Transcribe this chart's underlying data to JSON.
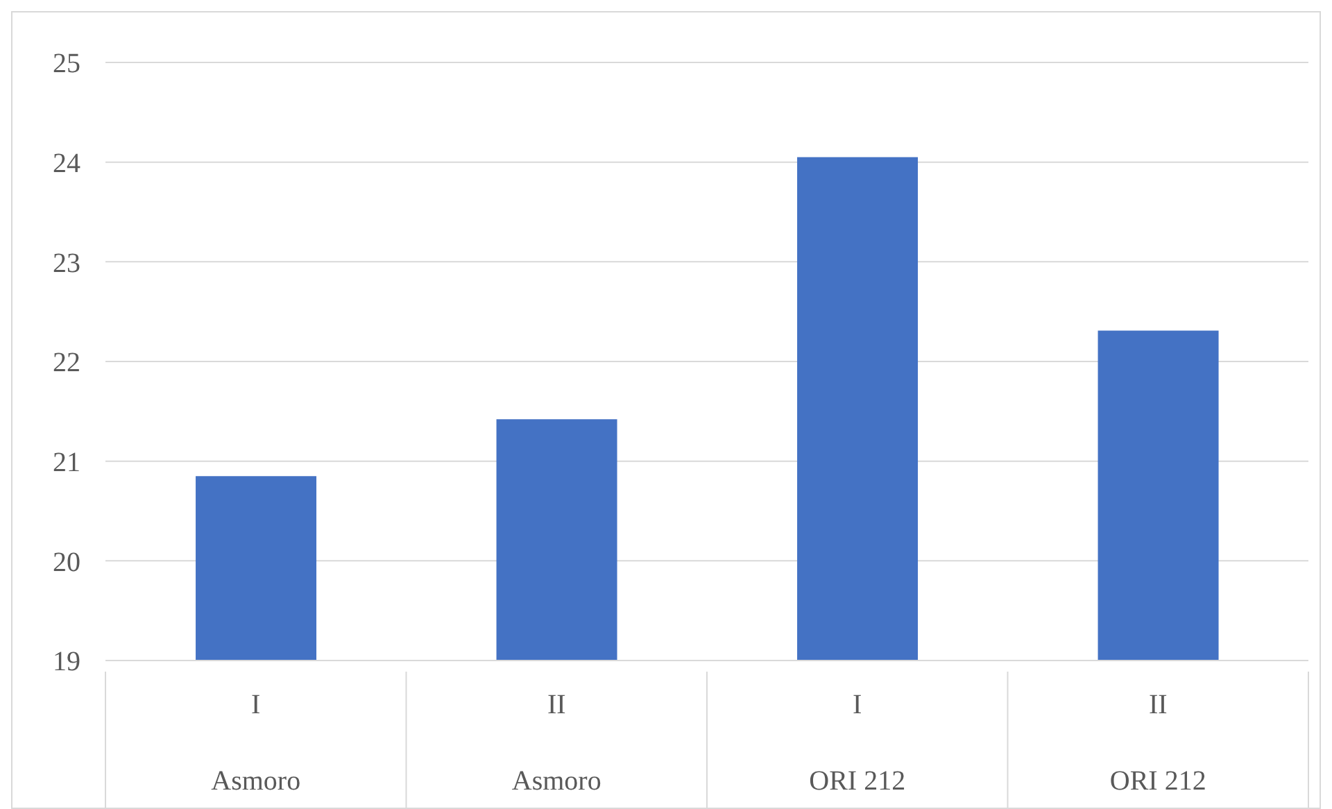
{
  "chart_data": {
    "type": "bar",
    "categories": [
      "I\nAsmoro",
      "II\nAsmoro",
      "I\nORI 212",
      "II\nORI 212"
    ],
    "values": [
      20.85,
      21.42,
      24.05,
      22.31
    ],
    "color": "#4472c4",
    "ylim": [
      19,
      25
    ],
    "yticks": [
      19,
      20,
      21,
      22,
      23,
      24,
      25
    ],
    "grid": "y"
  }
}
